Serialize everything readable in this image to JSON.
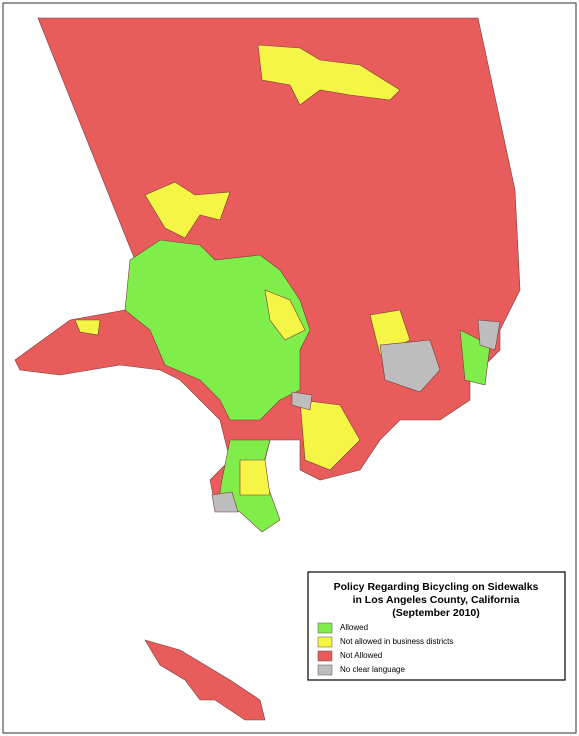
{
  "legend": {
    "title": [
      "Policy Regarding Bicycling on Sidewalks",
      "in Los Angeles County, California",
      "(September 2010)"
    ],
    "items": [
      {
        "label": "Allowed",
        "color": "#80ee4a"
      },
      {
        "label": "Not allowed in business districts",
        "color": "#f5f545"
      },
      {
        "label": "Not Allowed",
        "color": "#e85c5c"
      },
      {
        "label": "No clear language",
        "color": "#bdbdbd"
      }
    ]
  }
}
